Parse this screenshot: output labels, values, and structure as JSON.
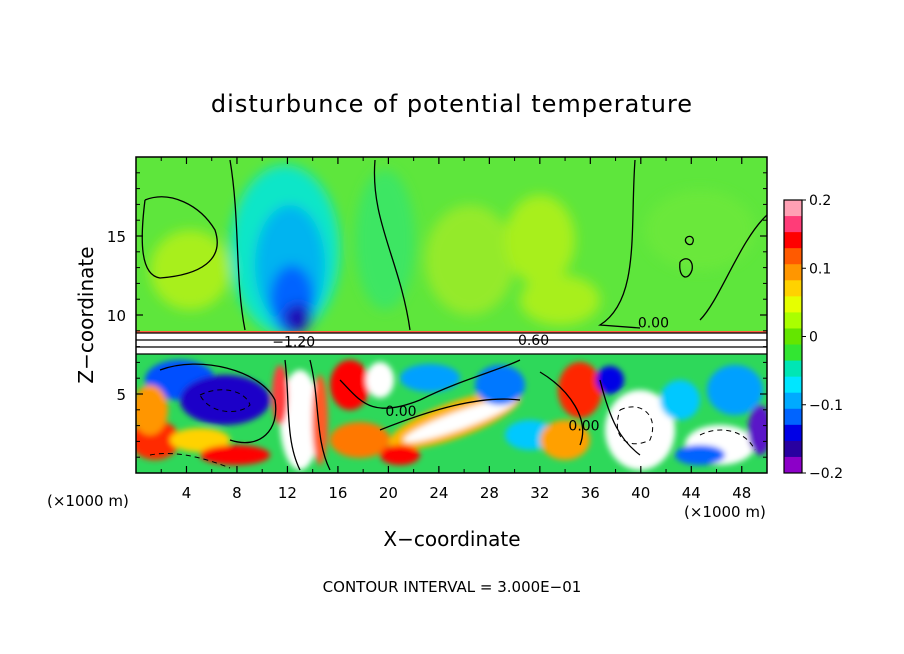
{
  "chart_data": {
    "type": "heatmap",
    "title": "disturbunce of potential temperature",
    "xlabel": "X−coordinate",
    "ylabel": "Z−coordinate",
    "x_unit": "(×1000 m)",
    "x_unit_right": "(×1000 m)",
    "footer": "CONTOUR INTERVAL = 3.000E−01",
    "xlim": [
      0,
      50
    ],
    "ylim": [
      0,
      20
    ],
    "x_ticks": [
      4,
      8,
      12,
      16,
      20,
      24,
      28,
      32,
      36,
      40,
      44,
      48
    ],
    "x_tick_labels": [
      "4",
      "8",
      "12",
      "16",
      "20",
      "24",
      "28",
      "32",
      "36",
      "40",
      "44",
      "48"
    ],
    "y_ticks": [
      5,
      10,
      15
    ],
    "y_tick_labels": [
      "5",
      "10",
      "15"
    ],
    "colorbar": {
      "range": [
        -0.2,
        0.2
      ],
      "ticks": [
        0.2,
        0.1,
        0,
        -0.1,
        -0.2
      ],
      "tick_labels": [
        "0.2",
        "0.1",
        "0",
        "−0.1",
        "−0.2"
      ],
      "colors": [
        "#ffa0b4",
        "#ff3c78",
        "#ff0000",
        "#ff5a00",
        "#ff9600",
        "#ffd200",
        "#e6ff00",
        "#aaff00",
        "#64e600",
        "#32e632",
        "#00e6b4",
        "#00e6ff",
        "#00aaff",
        "#0064ff",
        "#0000e6",
        "#2800a0",
        "#8c00c8"
      ]
    },
    "contour_labels": [
      {
        "text": "0.00",
        "x": 41,
        "y": 9.2
      },
      {
        "text": "−1.20",
        "x": 12.5,
        "y": 8.0
      },
      {
        "text": "0.60",
        "x": 31.5,
        "y": 8.1
      },
      {
        "text": "0.00",
        "x": 21,
        "y": 3.6
      },
      {
        "text": "0.00",
        "x": 35.5,
        "y": 2.7
      }
    ],
    "contour_interval": 0.3
  }
}
